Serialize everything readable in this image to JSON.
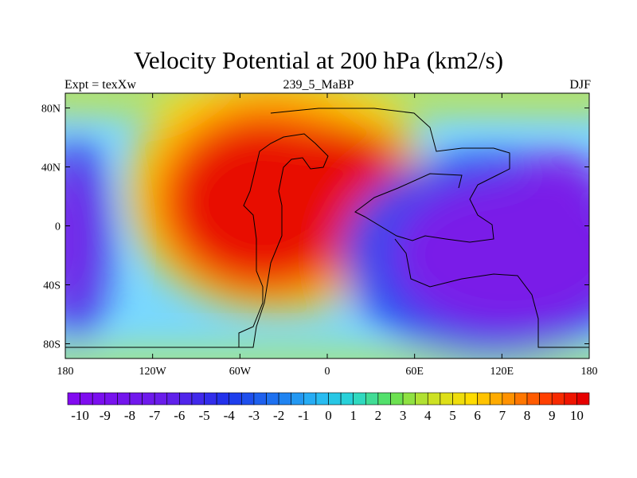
{
  "title": "Velocity Potential at 200 hPa (km2/s)",
  "subtitle_left": "Expt = texXw",
  "subtitle_center": "239_5_MaBP",
  "subtitle_right": "DJF",
  "map": {
    "lon_range": [
      -180,
      180
    ],
    "lat_range": [
      -90,
      90
    ],
    "x_ticks": [
      {
        "value": -180,
        "label": "180"
      },
      {
        "value": -120,
        "label": "120W"
      },
      {
        "value": -60,
        "label": "60W"
      },
      {
        "value": 0,
        "label": "0"
      },
      {
        "value": 60,
        "label": "60E"
      },
      {
        "value": 120,
        "label": "120E"
      },
      {
        "value": 180,
        "label": "180"
      }
    ],
    "y_ticks": [
      {
        "value": 80,
        "label": "80N"
      },
      {
        "value": 40,
        "label": "40N"
      },
      {
        "value": 0,
        "label": "0"
      },
      {
        "value": -40,
        "label": "40S"
      },
      {
        "value": -80,
        "label": "80S"
      }
    ],
    "field_centers": [
      {
        "type": "max",
        "lon": -45,
        "lat": 18,
        "value": 10
      },
      {
        "type": "min",
        "lon": 135,
        "lat": 0,
        "value": -10
      },
      {
        "type": "min",
        "lon": -178,
        "lat": -10,
        "value": -10
      }
    ],
    "colorbar": {
      "min": -10.5,
      "max": 10.5,
      "step": 0.5,
      "labels": [
        "-10",
        "-9",
        "-8",
        "-7",
        "-6",
        "-5",
        "-4",
        "-3",
        "-2",
        "-1",
        "0",
        "1",
        "2",
        "3",
        "4",
        "5",
        "6",
        "7",
        "8",
        "9",
        "10"
      ]
    }
  }
}
